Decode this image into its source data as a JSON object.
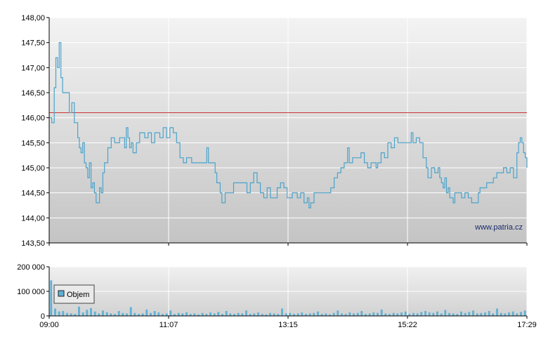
{
  "chart_data": [
    {
      "type": "line",
      "series": [
        {
          "values": [
            [
              0,
              146.0
            ],
            [
              3,
              145.9
            ],
            [
              6,
              146.6
            ],
            [
              8,
              147.2
            ],
            [
              10,
              147.0
            ],
            [
              12,
              147.5
            ],
            [
              14,
              146.8
            ],
            [
              16,
              146.5
            ],
            [
              20,
              146.5
            ],
            [
              24,
              146.1
            ],
            [
              27,
              146.3
            ],
            [
              30,
              145.9
            ],
            [
              34,
              145.6
            ],
            [
              36,
              145.4
            ],
            [
              38,
              145.3
            ],
            [
              40,
              145.5
            ],
            [
              42,
              145.1
            ],
            [
              44,
              145.0
            ],
            [
              46,
              144.8
            ],
            [
              48,
              145.1
            ],
            [
              50,
              144.6
            ],
            [
              52,
              144.7
            ],
            [
              54,
              144.5
            ],
            [
              56,
              144.3
            ],
            [
              58,
              144.3
            ],
            [
              60,
              144.6
            ],
            [
              62,
              144.5
            ],
            [
              64,
              144.9
            ],
            [
              66,
              145.1
            ],
            [
              70,
              145.4
            ],
            [
              74,
              145.6
            ],
            [
              78,
              145.5
            ],
            [
              84,
              145.6
            ],
            [
              90,
              145.4
            ],
            [
              92,
              145.8
            ],
            [
              94,
              145.6
            ],
            [
              96,
              145.4
            ],
            [
              98,
              145.5
            ],
            [
              100,
              145.3
            ],
            [
              104,
              145.5
            ],
            [
              108,
              145.7
            ],
            [
              112,
              145.7
            ],
            [
              114,
              145.6
            ],
            [
              118,
              145.7
            ],
            [
              122,
              145.5
            ],
            [
              126,
              145.7
            ],
            [
              130,
              145.7
            ],
            [
              132,
              145.6
            ],
            [
              136,
              145.8
            ],
            [
              140,
              145.6
            ],
            [
              144,
              145.8
            ],
            [
              148,
              145.7
            ],
            [
              152,
              145.5
            ],
            [
              156,
              145.2
            ],
            [
              160,
              145.1
            ],
            [
              164,
              145.2
            ],
            [
              170,
              145.1
            ],
            [
              180,
              145.1
            ],
            [
              186,
              145.1
            ],
            [
              188,
              145.4
            ],
            [
              190,
              145.1
            ],
            [
              194,
              145.1
            ],
            [
              198,
              144.9
            ],
            [
              200,
              144.7
            ],
            [
              204,
              144.5
            ],
            [
              206,
              144.3
            ],
            [
              210,
              144.5
            ],
            [
              214,
              144.5
            ],
            [
              220,
              144.7
            ],
            [
              230,
              144.7
            ],
            [
              236,
              144.5
            ],
            [
              240,
              144.7
            ],
            [
              244,
              144.9
            ],
            [
              248,
              144.7
            ],
            [
              252,
              144.5
            ],
            [
              256,
              144.4
            ],
            [
              260,
              144.6
            ],
            [
              264,
              144.4
            ],
            [
              270,
              144.4
            ],
            [
              272,
              144.6
            ],
            [
              276,
              144.7
            ],
            [
              280,
              144.6
            ],
            [
              284,
              144.4
            ],
            [
              290,
              144.5
            ],
            [
              296,
              144.4
            ],
            [
              300,
              144.5
            ],
            [
              304,
              144.3
            ],
            [
              308,
              144.4
            ],
            [
              310,
              144.2
            ],
            [
              312,
              144.3
            ],
            [
              316,
              144.5
            ],
            [
              324,
              144.5
            ],
            [
              330,
              144.5
            ],
            [
              336,
              144.6
            ],
            [
              340,
              144.8
            ],
            [
              344,
              144.9
            ],
            [
              348,
              145.0
            ],
            [
              352,
              145.1
            ],
            [
              356,
              145.4
            ],
            [
              358,
              145.1
            ],
            [
              362,
              145.2
            ],
            [
              368,
              145.2
            ],
            [
              372,
              145.3
            ],
            [
              376,
              145.1
            ],
            [
              380,
              145.0
            ],
            [
              384,
              145.1
            ],
            [
              390,
              145.0
            ],
            [
              392,
              145.1
            ],
            [
              396,
              145.3
            ],
            [
              400,
              145.2
            ],
            [
              404,
              145.5
            ],
            [
              408,
              145.4
            ],
            [
              412,
              145.6
            ],
            [
              416,
              145.5
            ],
            [
              422,
              145.5
            ],
            [
              428,
              145.5
            ],
            [
              432,
              145.7
            ],
            [
              434,
              145.5
            ],
            [
              438,
              145.6
            ],
            [
              442,
              145.5
            ],
            [
              446,
              145.2
            ],
            [
              450,
              145.0
            ],
            [
              452,
              144.8
            ],
            [
              456,
              145.0
            ],
            [
              460,
              144.9
            ],
            [
              464,
              145.0
            ],
            [
              466,
              144.8
            ],
            [
              468,
              144.7
            ],
            [
              470,
              144.6
            ],
            [
              472,
              144.8
            ],
            [
              474,
              144.5
            ],
            [
              476,
              144.6
            ],
            [
              478,
              144.4
            ],
            [
              482,
              144.3
            ],
            [
              484,
              144.5
            ],
            [
              488,
              144.5
            ],
            [
              492,
              144.4
            ],
            [
              496,
              144.5
            ],
            [
              500,
              144.4
            ],
            [
              504,
              144.3
            ],
            [
              508,
              144.3
            ],
            [
              512,
              144.5
            ],
            [
              514,
              144.6
            ],
            [
              518,
              144.6
            ],
            [
              522,
              144.7
            ],
            [
              526,
              144.7
            ],
            [
              530,
              144.8
            ],
            [
              534,
              144.9
            ],
            [
              538,
              144.9
            ],
            [
              542,
              145.0
            ],
            [
              546,
              144.9
            ],
            [
              550,
              145.0
            ],
            [
              554,
              144.8
            ],
            [
              558,
              145.3
            ],
            [
              560,
              145.5
            ],
            [
              562,
              145.6
            ],
            [
              564,
              145.5
            ],
            [
              566,
              145.3
            ],
            [
              568,
              145.2
            ],
            [
              570,
              145.0
            ]
          ]
        },
        {
          "name": "reference",
          "values": [
            [
              0,
              146.1
            ],
            [
              570,
              146.1
            ]
          ]
        }
      ],
      "x_ticks": [
        "09:00",
        "11:07",
        "13:15",
        "15:22",
        "17:29"
      ],
      "y_ticks": [
        "148,00",
        "147,50",
        "147,00",
        "146,50",
        "146,00",
        "145,50",
        "145,00",
        "144,50",
        "144,00",
        "143,50"
      ],
      "ylim": [
        143.5,
        148.0
      ],
      "xlim": [
        0,
        570
      ],
      "grid": true,
      "colors": {
        "line": "#4aa3cc",
        "reference": "#cc3333"
      },
      "watermark": "www.patria.cz"
    },
    {
      "type": "bar",
      "series": [
        {
          "name": "Objem",
          "values": [
            145000,
            30000,
            18000,
            20000,
            12000,
            10000,
            8000,
            38000,
            14000,
            25000,
            32000,
            18000,
            10000,
            22000,
            15000,
            10000,
            8000,
            20000,
            12000,
            10000,
            36000,
            12000,
            8000,
            10000,
            26000,
            12000,
            20000,
            14000,
            8000,
            10000,
            22000,
            8000,
            12000,
            10000,
            15000,
            8000,
            10000,
            6000,
            12000,
            8000,
            14000,
            10000,
            16000,
            8000,
            20000,
            10000,
            8000,
            12000,
            10000,
            22000,
            8000,
            10000,
            14000,
            8000,
            6000,
            12000,
            10000,
            8000,
            30000,
            10000,
            12000,
            8000,
            10000,
            14000,
            8000,
            10000,
            12000,
            18000,
            8000,
            10000,
            6000,
            12000,
            22000,
            10000,
            8000,
            14000,
            10000,
            12000,
            20000,
            8000,
            10000,
            14000,
            12000,
            26000,
            10000,
            8000,
            12000,
            10000,
            14000,
            18000,
            8000,
            12000,
            10000,
            16000,
            20000,
            14000,
            12000,
            18000,
            10000,
            24000,
            12000,
            10000,
            8000,
            18000,
            12000,
            16000,
            22000,
            10000,
            12000,
            14000,
            20000,
            10000,
            30000,
            12000,
            10000,
            14000,
            18000,
            10000,
            16000,
            22000
          ]
        }
      ],
      "x_ticks": [
        "09:00",
        "11:07",
        "13:15",
        "15:22",
        "17:29"
      ],
      "y_ticks": [
        "200 000",
        "100 000",
        "0"
      ],
      "ylim": [
        0,
        200000
      ],
      "grid": true,
      "legend": "top-left",
      "colors": {
        "bar": "#5eb1d6"
      }
    }
  ]
}
